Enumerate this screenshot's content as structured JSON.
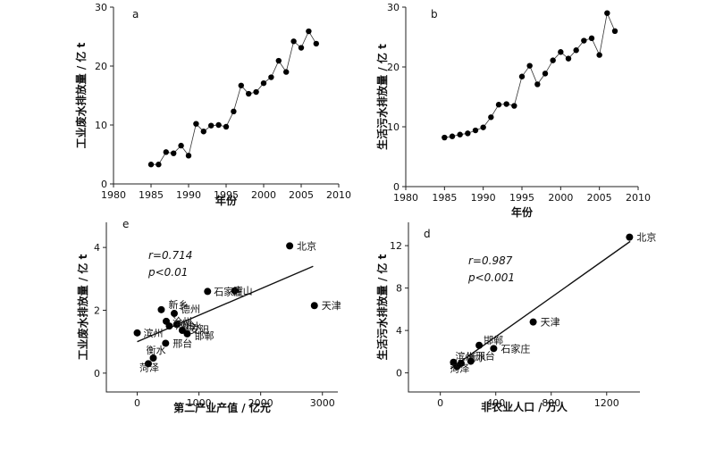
{
  "chart_data": [
    {
      "panel": "a",
      "type": "line",
      "xlabel": "年份",
      "ylabel": "工业废水排放量 / 亿 t",
      "xlim": [
        1980,
        2010
      ],
      "ylim": [
        0,
        30
      ],
      "xticks": [
        1980,
        1985,
        1990,
        1995,
        2000,
        2005,
        2010
      ],
      "yticks": [
        0,
        10,
        20,
        30
      ],
      "x": [
        1985,
        1986,
        1987,
        1988,
        1989,
        1990,
        1991,
        1992,
        1993,
        1994,
        1995,
        1996,
        1997,
        1998,
        1999,
        2000,
        2001,
        2002,
        2003,
        2004,
        2005,
        2006,
        2007
      ],
      "y": [
        3.3,
        3.3,
        5.4,
        5.2,
        6.5,
        4.8,
        10.2,
        8.9,
        9.9,
        10.0,
        9.7,
        12.3,
        16.7,
        15.3,
        15.6,
        17.1,
        18.1,
        20.9,
        19.0,
        24.2,
        23.1,
        25.9,
        23.8
      ]
    },
    {
      "panel": "b",
      "type": "line",
      "xlabel": "年份",
      "ylabel": "生活污水排放量 / 亿 t",
      "xlim": [
        1980,
        2010
      ],
      "ylim": [
        0,
        30
      ],
      "xticks": [
        1980,
        1985,
        1990,
        1995,
        2000,
        2005,
        2010
      ],
      "yticks": [
        0,
        10,
        20,
        30
      ],
      "x": [
        1985,
        1986,
        1987,
        1988,
        1989,
        1990,
        1991,
        1992,
        1993,
        1994,
        1995,
        1996,
        1997,
        1998,
        1999,
        2000,
        2001,
        2002,
        2003,
        2004,
        2005,
        2006,
        2007
      ],
      "y": [
        8.2,
        8.4,
        8.7,
        8.9,
        9.4,
        9.9,
        11.6,
        13.7,
        13.8,
        13.5,
        18.4,
        20.2,
        17.1,
        18.9,
        21.1,
        22.5,
        21.4,
        22.8,
        24.4,
        24.8,
        22.0,
        29.0,
        26.0
      ]
    },
    {
      "panel": "e",
      "type": "scatter",
      "xlabel": "第二产业产值 / 亿元",
      "ylabel": "工业废水排放量 / 亿 t",
      "xlim": [
        -500,
        3250
      ],
      "ylim": [
        -0.6,
        4.8
      ],
      "xticks": [
        0,
        1000,
        2000,
        3000
      ],
      "yticks": [
        0,
        2,
        4
      ],
      "stat_r": "r=0.714",
      "stat_p": "p<0.01",
      "fit": {
        "x": [
          0,
          2850
        ],
        "y": [
          1.0,
          3.4
        ]
      },
      "points": [
        {
          "x": 2470,
          "y": 4.05,
          "label": "北京"
        },
        {
          "x": 2870,
          "y": 2.15,
          "label": "天津"
        },
        {
          "x": 1140,
          "y": 2.6,
          "label": "石家庄"
        },
        {
          "x": 1580,
          "y": 2.62,
          "label": "唐山"
        },
        {
          "x": 390,
          "y": 2.02,
          "label": "新乡"
        },
        {
          "x": 600,
          "y": 1.9,
          "label": "德州"
        },
        {
          "x": 470,
          "y": 1.65,
          "label": "沧州"
        },
        {
          "x": 640,
          "y": 1.55,
          "label": "衡水"
        },
        {
          "x": 520,
          "y": 1.5,
          "label": "邢台"
        },
        {
          "x": 730,
          "y": 1.36,
          "label": "安阳"
        },
        {
          "x": 810,
          "y": 1.25,
          "label": "邯郸"
        },
        {
          "x": 0,
          "y": 1.28,
          "label": "滨州"
        },
        {
          "x": 460,
          "y": 0.95,
          "label": "邢台"
        },
        {
          "x": 260,
          "y": 0.48,
          "label": "衡水"
        },
        {
          "x": 180,
          "y": 0.3,
          "label": "菏泽"
        }
      ]
    },
    {
      "panel": "d",
      "type": "scatter",
      "xlabel": "非农业人口 / 万人",
      "ylabel": "生活污水排放量 / 亿 t",
      "xlim": [
        -230,
        1440
      ],
      "ylim": [
        -1.8,
        14.2
      ],
      "xticks": [
        0,
        400,
        800,
        1200
      ],
      "yticks": [
        0,
        4,
        8,
        12
      ],
      "stat_r": "r=0.987",
      "stat_p": "p<0.001",
      "fit": {
        "x": [
          75,
          1370
        ],
        "y": [
          0.4,
          12.4
        ]
      },
      "points": [
        {
          "x": 1365,
          "y": 12.8,
          "label": "北京"
        },
        {
          "x": 670,
          "y": 4.8,
          "label": "天津"
        },
        {
          "x": 280,
          "y": 2.6,
          "label": "邯郸"
        },
        {
          "x": 385,
          "y": 2.3,
          "label": "石家庄"
        },
        {
          "x": 95,
          "y": 1.0,
          "label": "滨州"
        },
        {
          "x": 150,
          "y": 0.9,
          "label": "衡水"
        },
        {
          "x": 220,
          "y": 1.1,
          "label": "邢台"
        },
        {
          "x": 120,
          "y": 0.6,
          "label": "菏泽"
        }
      ]
    }
  ]
}
